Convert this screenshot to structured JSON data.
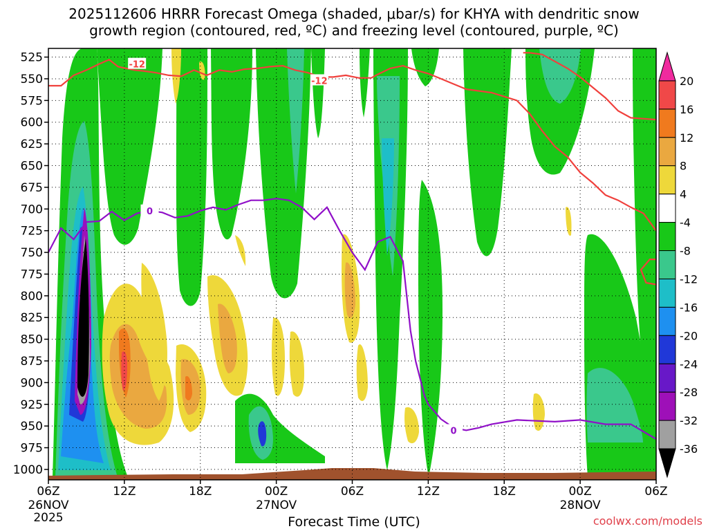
{
  "header": {
    "title_line1": "2025112606 HRRR Forecast Omega (shaded, μbar/s) for KHYA with dendritic snow",
    "title_line2": "growth region (contoured, red, ºC) and freezing level (contoured, purple, ºC)"
  },
  "footer": {
    "credit": "coolwx.com/models",
    "year": "2025"
  },
  "colors": {
    "dgz_contour": "#f0403c",
    "freezing_contour": "#9010c8",
    "terrain": "#a0522d",
    "grid": "#000000"
  },
  "chart_data": {
    "type": "heatmap",
    "title": "2025112606 HRRR Forecast Omega (shaded, μbar/s) for KHYA with dendritic snow growth region (contoured, red, ºC) and freezing level (contoured, purple, ºC)",
    "xlabel": "Forecast Time (UTC)",
    "ylabel": "",
    "x_ticks": [
      {
        "hour": 0,
        "label": "06Z",
        "date": "26NOV"
      },
      {
        "hour": 6,
        "label": "12Z",
        "date": ""
      },
      {
        "hour": 12,
        "label": "18Z",
        "date": ""
      },
      {
        "hour": 18,
        "label": "00Z",
        "date": "27NOV"
      },
      {
        "hour": 24,
        "label": "06Z",
        "date": ""
      },
      {
        "hour": 30,
        "label": "12Z",
        "date": ""
      },
      {
        "hour": 36,
        "label": "18Z",
        "date": ""
      },
      {
        "hour": 42,
        "label": "00Z",
        "date": "28NOV"
      },
      {
        "hour": 48,
        "label": "06Z",
        "date": ""
      }
    ],
    "xlim": [
      0,
      48
    ],
    "y_ticks": [
      525,
      550,
      575,
      600,
      625,
      650,
      675,
      700,
      725,
      750,
      775,
      800,
      825,
      850,
      875,
      900,
      925,
      950,
      975,
      1000
    ],
    "ylim": [
      515,
      1012
    ],
    "y_reversed": true,
    "colorbar": {
      "labels": [
        20,
        16,
        12,
        8,
        4,
        -4,
        -8,
        -12,
        -16,
        -20,
        -24,
        -28,
        -32,
        -36
      ],
      "bins": [
        {
          "color": "#f02a9e"
        },
        {
          "color": "#f04848"
        },
        {
          "color": "#f07a1e"
        },
        {
          "color": "#eaa840"
        },
        {
          "color": "#eed83a"
        },
        {
          "color": "#ffffff"
        },
        {
          "color": "#18c818"
        },
        {
          "color": "#3ac88c"
        },
        {
          "color": "#1ebec8"
        },
        {
          "color": "#1e90f0"
        },
        {
          "color": "#2038d8"
        },
        {
          "color": "#6818c8"
        },
        {
          "color": "#9e10b8"
        },
        {
          "color": "#a0a0a0"
        },
        {
          "color": "#000000"
        }
      ]
    },
    "contours": [
      {
        "name": "dendritic snow growth (-12 ºC)",
        "label": "-12",
        "color": "#f0403c",
        "segments": [
          [
            [
              0,
              558
            ],
            [
              1,
              558
            ],
            [
              2,
              546
            ],
            [
              3,
              540
            ],
            [
              4,
              533
            ],
            [
              4.8,
              528
            ],
            [
              5.5,
              536
            ],
            [
              6.8,
              540
            ],
            [
              7.5,
              541
            ],
            [
              8.5,
              543
            ],
            [
              9.5,
              546
            ],
            [
              10.5,
              547
            ],
            [
              11.5,
              540
            ],
            [
              12.5,
              546
            ],
            [
              13.5,
              540
            ],
            [
              14.5,
              542
            ],
            [
              15.5,
              539
            ],
            [
              16.5,
              538
            ],
            [
              17.5,
              536
            ],
            [
              18.5,
              535
            ],
            [
              19.5,
              540
            ],
            [
              20.5,
              543
            ],
            [
              21.5,
              548
            ],
            [
              22.5,
              548
            ],
            [
              23.5,
              546
            ],
            [
              24.5,
              549
            ],
            [
              25.5,
              549
            ],
            [
              26,
              545
            ],
            [
              27,
              538
            ],
            [
              28,
              535
            ],
            [
              29,
              540
            ],
            [
              30,
              544
            ],
            [
              31,
              550
            ],
            [
              32,
              556
            ],
            [
              33,
              562
            ],
            [
              35,
              566
            ],
            [
              37,
              575
            ],
            [
              38,
              590
            ],
            [
              39,
              610
            ],
            [
              40,
              628
            ],
            [
              41,
              640
            ],
            [
              42,
              658
            ],
            [
              43,
              670
            ],
            [
              44,
              684
            ],
            [
              45,
              690
            ],
            [
              46,
              698
            ],
            [
              47,
              705
            ],
            [
              48,
              725
            ]
          ],
          [
            [
              37.5,
              520
            ],
            [
              38,
              520
            ],
            [
              39,
              522
            ],
            [
              40,
              530
            ],
            [
              41,
              538
            ],
            [
              42,
              548
            ],
            [
              43,
              560
            ],
            [
              44,
              572
            ],
            [
              45,
              587
            ],
            [
              46,
              595
            ],
            [
              47,
              596
            ],
            [
              48,
              597
            ]
          ],
          [
            [
              48,
              758
            ],
            [
              47.5,
              758
            ],
            [
              46.8,
              770
            ],
            [
              47.2,
              785
            ],
            [
              48,
              787
            ]
          ]
        ],
        "labels_at": [
          [
            7,
            533
          ],
          [
            21.4,
            552
          ]
        ]
      },
      {
        "name": "freezing level (0 ºC)",
        "label": "0",
        "color": "#9010c8",
        "segments": [
          [
            [
              0,
              750
            ],
            [
              1,
              722
            ],
            [
              2,
              735
            ],
            [
              3,
              715
            ],
            [
              4,
              714
            ],
            [
              5,
              703
            ],
            [
              6,
              713
            ],
            [
              7,
              705
            ],
            [
              8,
              702
            ],
            [
              9,
              704
            ],
            [
              10,
              710
            ],
            [
              11,
              708
            ],
            [
              12,
              702
            ],
            [
              13,
              698
            ],
            [
              14,
              701
            ],
            [
              15,
              695
            ],
            [
              16,
              690
            ],
            [
              17,
              690
            ],
            [
              18,
              688
            ],
            [
              19,
              690
            ],
            [
              20,
              698
            ],
            [
              21,
              712
            ],
            [
              22,
              698
            ],
            [
              23,
              725
            ],
            [
              24,
              750
            ],
            [
              25,
              770
            ],
            [
              26,
              738
            ],
            [
              27,
              732
            ],
            [
              28,
              760
            ],
            [
              28.6,
              840
            ],
            [
              29,
              875
            ],
            [
              29.7,
              915
            ],
            [
              30,
              925
            ],
            [
              31,
              942
            ],
            [
              32,
              952
            ],
            [
              33,
              955
            ],
            [
              34,
              952
            ],
            [
              35,
              948
            ],
            [
              37,
              943
            ],
            [
              40,
              945
            ],
            [
              42,
              943
            ],
            [
              44,
              948
            ],
            [
              46,
              948
            ],
            [
              48,
              965
            ]
          ]
        ],
        "labels_at": [
          [
            8,
            702
          ],
          [
            32,
            955
          ]
        ]
      }
    ]
  }
}
